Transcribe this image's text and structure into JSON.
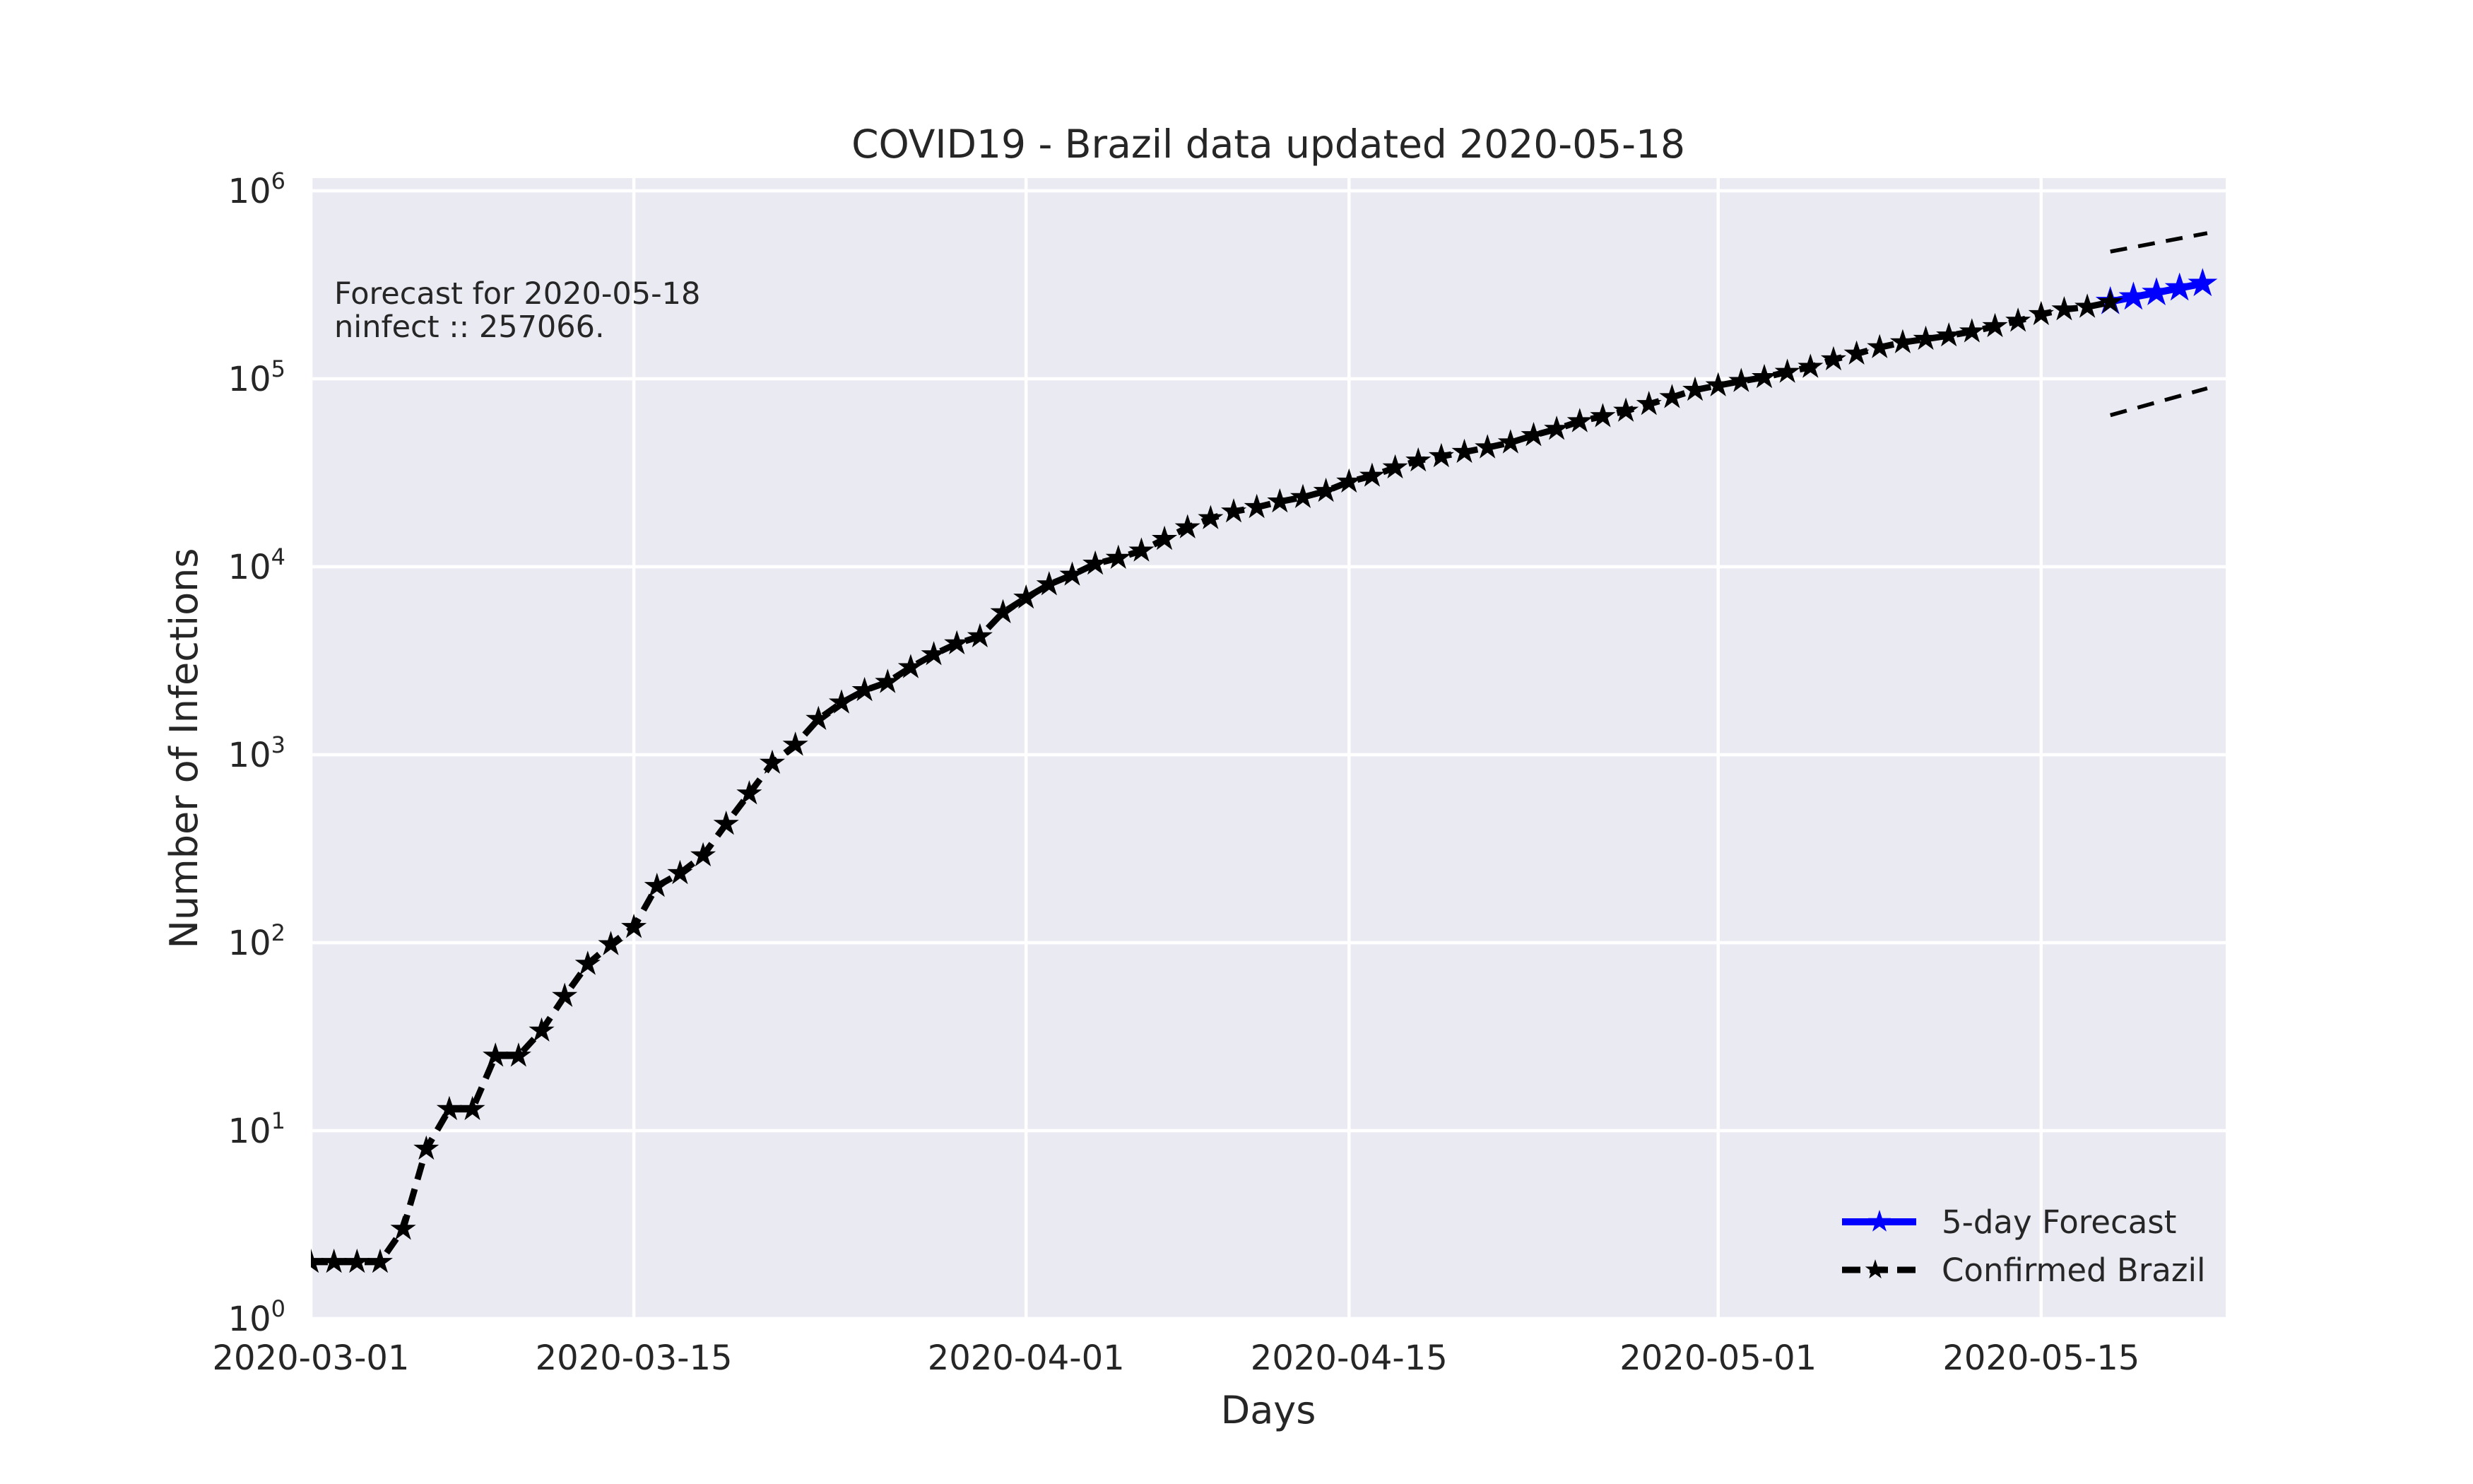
{
  "chart_data": {
    "type": "line",
    "title": "COVID19 - Brazil data updated 2020-05-18",
    "xlabel": "Days",
    "ylabel": "Number of Infections",
    "yscale": "log",
    "ylim": [
      1,
      1000000
    ],
    "xlim_dates": [
      "2020-03-01",
      "2020-05-23"
    ],
    "grid": true,
    "legend_position": "lower right",
    "colors": {
      "figure_bg": "#ffffff",
      "axes_bg": "#eaeaf2",
      "grid": "#ffffff",
      "text": "#262626",
      "confirmed": "#000000",
      "forecast": "#0000ff"
    },
    "x_ticks": [
      {
        "label": "2020-03-01",
        "day": 0
      },
      {
        "label": "2020-03-15",
        "day": 14
      },
      {
        "label": "2020-04-01",
        "day": 31
      },
      {
        "label": "2020-04-15",
        "day": 45
      },
      {
        "label": "2020-05-01",
        "day": 61
      },
      {
        "label": "2020-05-15",
        "day": 75
      }
    ],
    "y_ticks": [
      {
        "base": "10",
        "exp": "0",
        "value": 1
      },
      {
        "base": "10",
        "exp": "1",
        "value": 10
      },
      {
        "base": "10",
        "exp": "2",
        "value": 100
      },
      {
        "base": "10",
        "exp": "3",
        "value": 1000
      },
      {
        "base": "10",
        "exp": "4",
        "value": 10000
      },
      {
        "base": "10",
        "exp": "5",
        "value": 100000
      },
      {
        "base": "10",
        "exp": "6",
        "value": 1000000
      }
    ],
    "annotation": {
      "line1": "Forecast for 2020-05-18",
      "line2": "ninfect :: 257066."
    },
    "legend": [
      {
        "label": "5-day Forecast",
        "color": "#0000ff",
        "linestyle": "solid",
        "marker": "star"
      },
      {
        "label": "Confirmed Brazil",
        "color": "#000000",
        "linestyle": "dashed",
        "marker": "star"
      }
    ],
    "series": [
      {
        "name": "Confirmed Brazil",
        "color": "#000000",
        "linestyle": "dashed",
        "marker": "star",
        "start_date": "2020-03-01",
        "start_day": 0,
        "values": [
          2,
          2,
          2,
          2,
          3,
          8,
          13,
          13,
          25,
          25,
          34,
          52,
          77,
          98,
          121,
          200,
          234,
          291,
          428,
          621,
          904,
          1128,
          1546,
          1891,
          2201,
          2433,
          2915,
          3417,
          3904,
          4256,
          5717,
          6836,
          8044,
          9056,
          10360,
          11130,
          12161,
          14034,
          16170,
          18092,
          19638,
          20727,
          22192,
          23430,
          25262,
          28320,
          30425,
          33682,
          36658,
          38654,
          40743,
          43079,
          45757,
          50036,
          54043,
          59324,
          63100,
          67446,
          73235,
          79685,
          87187,
          92109,
          97100,
          101826,
          108620,
          115455,
          126611,
          135773,
          146894,
          156061,
          162699,
          169594,
          178214,
          190137,
          203165,
          220291,
          233511,
          241080,
          255368
        ]
      },
      {
        "name": "5-day Forecast",
        "color": "#0000ff",
        "linestyle": "solid",
        "marker": "star",
        "start_date": "2020-05-18",
        "start_day": 78,
        "values": [
          257066,
          272000,
          287000,
          304000,
          321000
        ]
      }
    ],
    "trend_bounds": [
      {
        "name": "upper",
        "days": [
          78,
          82.2
        ],
        "values": [
          475000,
          595000
        ]
      },
      {
        "name": "lower",
        "days": [
          78,
          82.2
        ],
        "values": [
          64000,
          89000
        ]
      }
    ]
  }
}
